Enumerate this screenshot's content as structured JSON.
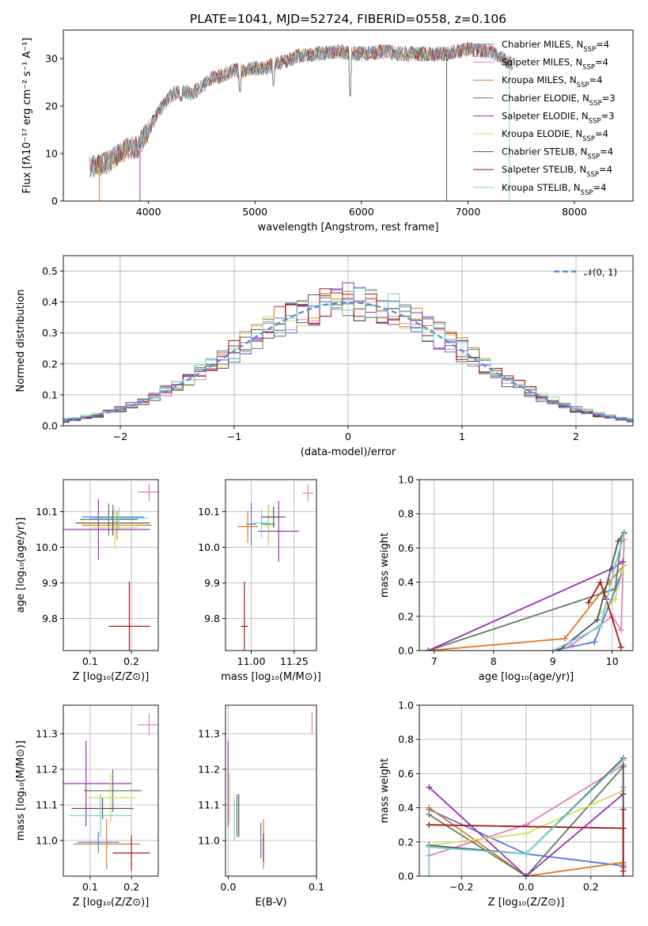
{
  "figure_title": "PLATE=1041, MJD=52724, FIBERID=0558, z=0.106",
  "colors": [
    "#5577dd",
    "#e57fbf",
    "#dd7b25",
    "#5c7f5c",
    "#9b30b5",
    "#cde05a",
    "#555555",
    "#a21a1a",
    "#76d3d3"
  ],
  "chart_data": [
    {
      "id": "spectrum",
      "type": "line",
      "xlabel": "wavelength [Angstrom, rest frame]",
      "ylabel": "Flux [fλ10⁻¹⁷ erg cm⁻² s⁻¹ A⁻¹]",
      "xlim": [
        3200,
        8550
      ],
      "ylim": [
        0,
        36
      ],
      "xticks": [
        4000,
        5000,
        6000,
        7000,
        8000
      ],
      "yticks": [
        0,
        10,
        20,
        30
      ],
      "grid": false,
      "legend_position": "upper-right",
      "legend": [
        "Chabrier MILES, N_SSP=4",
        "Salpeter MILES, N_SSP=4",
        "Kroupa MILES, N_SSP=4",
        "Chabrier ELODIE, N_SSP=3",
        "Salpeter ELODIE, N_SSP=3",
        "Kroupa ELODIE, N_SSP=4",
        "Chabrier STELIB, N_SSP=4",
        "Salpeter STELIB, N_SSP=4",
        "Kroupa STELIB, N_SSP=4"
      ],
      "continuum": {
        "x": [
          3450,
          3600,
          3700,
          3800,
          3900,
          4000,
          4100,
          4200,
          4300,
          4400,
          4500,
          4600,
          4700,
          4800,
          4900,
          5000,
          5100,
          5200,
          5300,
          5400,
          5600,
          5800,
          5900,
          6000,
          6200,
          6400,
          6600,
          6800,
          7000,
          7200,
          7400
        ],
        "y": [
          7,
          8,
          9.5,
          11,
          11.5,
          15,
          19,
          22,
          23.5,
          22.5,
          24,
          26,
          26.5,
          27.5,
          27.5,
          28,
          28,
          29,
          29.5,
          30.5,
          31,
          31.5,
          31,
          31,
          31.5,
          31,
          31,
          31,
          32,
          31.5,
          29
        ]
      },
      "absorption_lines": [
        {
          "x": 5890,
          "y": 22
        },
        {
          "x": 4861,
          "y": 23
        },
        {
          "x": 5175,
          "y": 24
        },
        {
          "x": 4305,
          "y": 21
        }
      ],
      "edge_drops": [
        {
          "x": 3540,
          "y": 0
        },
        {
          "x": 3920,
          "y": 0
        },
        {
          "x": 6800,
          "y": 0
        },
        {
          "x": 7390,
          "y": 0
        }
      ]
    },
    {
      "id": "residuals",
      "type": "line",
      "xlabel": "(data-model)/error",
      "ylabel": "Normed distribution",
      "xlim": [
        -2.5,
        2.5
      ],
      "ylim": [
        0,
        0.55
      ],
      "xticks": [
        -2,
        -1,
        0,
        1,
        2
      ],
      "yticks": [
        0.0,
        0.1,
        0.2,
        0.3,
        0.4,
        0.5
      ],
      "grid": true,
      "legend_position": "upper-right",
      "legend": [
        "𝒩(0, 1)"
      ],
      "bin_width": 0.1
    },
    {
      "id": "age_vs_Z",
      "type": "scatter",
      "xlabel": "Z [log₁₀(Z/Z⊙)]",
      "ylabel": "age  [log₁₀(age/yr)]",
      "xlim": [
        0.035,
        0.265
      ],
      "ylim": [
        9.71,
        10.19
      ],
      "xticks": [
        0.1,
        0.2
      ],
      "yticks": [
        9.8,
        9.9,
        10.0,
        10.1
      ],
      "grid": true,
      "points": [
        {
          "x": 0.155,
          "y": 10.085,
          "xerr": 0.075,
          "yerr": 0.035
        },
        {
          "x": 0.243,
          "y": 10.155,
          "xerr": 0.028,
          "yerr": 0.025
        },
        {
          "x": 0.165,
          "y": 10.062,
          "xerr": 0.085,
          "yerr": 0.04
        },
        {
          "x": 0.145,
          "y": 10.078,
          "xerr": 0.07,
          "yerr": 0.045
        },
        {
          "x": 0.12,
          "y": 10.05,
          "xerr": 0.125,
          "yerr": 0.085
        },
        {
          "x": 0.16,
          "y": 10.055,
          "xerr": 0.055,
          "yerr": 0.06
        },
        {
          "x": 0.155,
          "y": 10.068,
          "xerr": 0.09,
          "yerr": 0.035
        },
        {
          "x": 0.195,
          "y": 9.778,
          "xerr": 0.05,
          "yerr": 0.125
        },
        {
          "x": 0.17,
          "y": 10.082,
          "xerr": 0.07,
          "yerr": 0.03
        }
      ]
    },
    {
      "id": "age_vs_mass",
      "type": "scatter",
      "xlabel": "mass [log₁₀(M/M⊙)]",
      "ylabel": "",
      "xlim": [
        10.85,
        11.38
      ],
      "ylim": [
        9.71,
        10.19
      ],
      "xticks": [
        11.0,
        11.25
      ],
      "yticks": [
        9.8,
        9.9,
        10.0,
        10.1
      ],
      "grid": true,
      "points": [
        {
          "x": 11.0,
          "y": 10.065,
          "xerr": 0.03,
          "yerr": 0.06
        },
        {
          "x": 11.33,
          "y": 10.152,
          "xerr": 0.035,
          "yerr": 0.025
        },
        {
          "x": 10.98,
          "y": 10.058,
          "xerr": 0.06,
          "yerr": 0.045
        },
        {
          "x": 11.1,
          "y": 10.065,
          "xerr": 0.04,
          "yerr": 0.05
        },
        {
          "x": 11.16,
          "y": 10.045,
          "xerr": 0.12,
          "yerr": 0.085
        },
        {
          "x": 11.1,
          "y": 10.06,
          "xerr": 0.02,
          "yerr": 0.06
        },
        {
          "x": 11.13,
          "y": 10.085,
          "xerr": 0.07,
          "yerr": 0.03
        },
        {
          "x": 10.96,
          "y": 9.778,
          "xerr": 0.02,
          "yerr": 0.125
        },
        {
          "x": 11.06,
          "y": 10.068,
          "xerr": 0.05,
          "yerr": 0.04
        }
      ]
    },
    {
      "id": "mass_weight_vs_age",
      "type": "line",
      "xlabel": "age  [log₁₀(age/yr)]",
      "ylabel": "mass weight",
      "xlim": [
        6.75,
        10.35
      ],
      "ylim": [
        0,
        1.0
      ],
      "xticks": [
        7,
        8,
        9,
        10
      ],
      "yticks": [
        0.0,
        0.2,
        0.4,
        0.6,
        0.8,
        1.0
      ],
      "grid": true,
      "series": [
        {
          "x": [
            9.0,
            9.7,
            10.1,
            10.2
          ],
          "y": [
            0.0,
            0.05,
            0.4,
            0.5
          ]
        },
        {
          "x": [
            9.3,
            10.0,
            10.15,
            10.2
          ],
          "y": [
            0.03,
            0.2,
            0.12,
            0.65
          ]
        },
        {
          "x": [
            6.9,
            9.2,
            9.95,
            10.2
          ],
          "y": [
            0.0,
            0.07,
            0.4,
            0.5
          ]
        },
        {
          "x": [
            6.9,
            10.05,
            10.15
          ],
          "y": [
            0.0,
            0.36,
            0.64
          ]
        },
        {
          "x": [
            6.9,
            10.0,
            10.18
          ],
          "y": [
            0.0,
            0.48,
            0.52
          ]
        },
        {
          "x": [
            9.75,
            10.05,
            10.2
          ],
          "y": [
            0.2,
            0.3,
            0.5
          ]
        },
        {
          "x": [
            9.1,
            9.75,
            10.1,
            10.2
          ],
          "y": [
            0.0,
            0.18,
            0.64,
            0.69
          ]
        },
        {
          "x": [
            9.6,
            9.8,
            9.9,
            10.15
          ],
          "y": [
            0.28,
            0.4,
            0.3,
            0.02
          ]
        },
        {
          "x": [
            9.0,
            9.8,
            10.05,
            10.2
          ],
          "y": [
            0.0,
            0.14,
            0.5,
            0.68
          ]
        }
      ]
    },
    {
      "id": "mass_vs_Z",
      "type": "scatter",
      "xlabel": "Z [log₁₀(Z/Z⊙)]",
      "ylabel": "mass [log₁₀(M/M⊙)]",
      "xlim": [
        0.035,
        0.265
      ],
      "ylim": [
        10.9,
        11.38
      ],
      "xticks": [
        0.1,
        0.2
      ],
      "yticks": [
        11.0,
        11.1,
        11.2,
        11.3
      ],
      "grid": true,
      "points": [
        {
          "x": 0.12,
          "y": 10.995,
          "xerr": 0.05,
          "yerr": 0.03
        },
        {
          "x": 0.243,
          "y": 11.325,
          "xerr": 0.028,
          "yerr": 0.03
        },
        {
          "x": 0.14,
          "y": 10.99,
          "xerr": 0.08,
          "yerr": 0.07
        },
        {
          "x": 0.155,
          "y": 11.14,
          "xerr": 0.07,
          "yerr": 0.06
        },
        {
          "x": 0.09,
          "y": 11.16,
          "xerr": 0.11,
          "yerr": 0.12
        },
        {
          "x": 0.15,
          "y": 11.12,
          "xerr": 0.06,
          "yerr": 0.07
        },
        {
          "x": 0.13,
          "y": 11.09,
          "xerr": 0.075,
          "yerr": 0.03
        },
        {
          "x": 0.2,
          "y": 10.965,
          "xerr": 0.045,
          "yerr": 0.05
        },
        {
          "x": 0.125,
          "y": 11.07,
          "xerr": 0.075,
          "yerr": 0.06
        }
      ]
    },
    {
      "id": "mass_vs_EBV",
      "type": "scatter",
      "xlabel": "E(B-V)",
      "ylabel": "",
      "xlim": [
        -0.003,
        0.1
      ],
      "ylim": [
        10.9,
        11.38
      ],
      "xticks": [
        0.0,
        0.1
      ],
      "yticks": [
        11.0,
        11.1,
        11.2,
        11.3
      ],
      "grid": true,
      "points": [
        {
          "x": 0.037,
          "y": 11.0,
          "xerr": 0,
          "yerr": 0.05
        },
        {
          "x": 0.095,
          "y": 11.33,
          "xerr": 0,
          "yerr": 0.03
        },
        {
          "x": 0.04,
          "y": 10.99,
          "xerr": 0,
          "yerr": 0.07
        },
        {
          "x": 0.01,
          "y": 11.07,
          "xerr": 0,
          "yerr": 0.06
        },
        {
          "x": 0.0,
          "y": 11.16,
          "xerr": 0,
          "yerr": 0.12
        },
        {
          "x": 0.002,
          "y": 11.12,
          "xerr": 0,
          "yerr": 0.07
        },
        {
          "x": 0.012,
          "y": 11.07,
          "xerr": 0,
          "yerr": 0.06
        },
        {
          "x": 0.04,
          "y": 10.98,
          "xerr": 0,
          "yerr": 0.04
        },
        {
          "x": 0.007,
          "y": 11.06,
          "xerr": 0,
          "yerr": 0.06
        }
      ]
    },
    {
      "id": "mass_weight_vs_Z",
      "type": "line",
      "xlabel": "Z [log₁₀(Z/Z⊙)]",
      "ylabel": "mass weight",
      "xlim": [
        -0.33,
        0.33
      ],
      "ylim": [
        0,
        1.0
      ],
      "xticks": [
        -0.2,
        0.0,
        0.2
      ],
      "yticks": [
        0.0,
        0.2,
        0.4,
        0.6,
        0.8,
        1.0
      ],
      "grid": true,
      "series": [
        {
          "x": [
            -0.3,
            0.0,
            0.3,
            0.3
          ],
          "y": [
            0.39,
            0.13,
            0.06,
            0.48
          ]
        },
        {
          "x": [
            -0.3,
            0.0,
            0.3,
            0.3
          ],
          "y": [
            0.12,
            0.3,
            0.65,
            0.52
          ]
        },
        {
          "x": [
            -0.3,
            0.0,
            0.3,
            0.3
          ],
          "y": [
            0.4,
            0.0,
            0.08,
            0.05
          ]
        },
        {
          "x": [
            -0.3,
            0.0,
            0.3
          ],
          "y": [
            0.36,
            0.0,
            0.64
          ]
        },
        {
          "x": [
            -0.3,
            0.0,
            0.3
          ],
          "y": [
            0.52,
            0.0,
            0.48
          ]
        },
        {
          "x": [
            -0.3,
            0.0,
            0.3,
            0.3
          ],
          "y": [
            0.18,
            0.25,
            0.5,
            0.07
          ]
        },
        {
          "x": [
            -0.3,
            0.0,
            0.3,
            0.3
          ],
          "y": [
            0.18,
            0.13,
            0.69,
            0.0
          ]
        },
        {
          "x": [
            -0.3,
            0.3,
            0.3,
            0.3
          ],
          "y": [
            0.3,
            0.28,
            0.39,
            0.03
          ]
        },
        {
          "x": [
            -0.3,
            -0.3,
            0.0,
            0.3
          ],
          "y": [
            0.0,
            0.17,
            0.13,
            0.68
          ]
        }
      ]
    }
  ]
}
